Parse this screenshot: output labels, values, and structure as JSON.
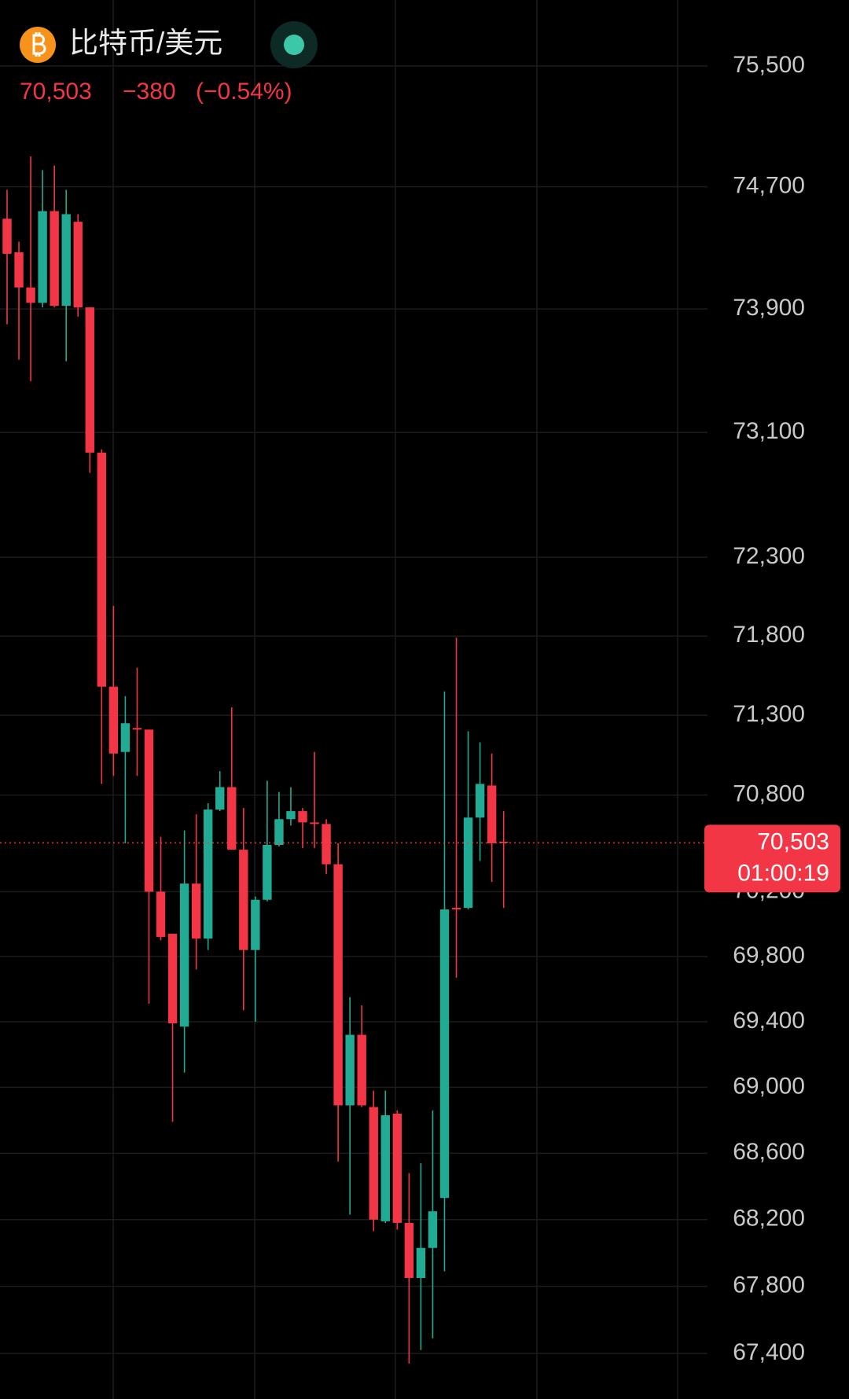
{
  "chart_data": {
    "type": "candlestick",
    "title": "比特币/美元",
    "last_price": {
      "value": 70503,
      "label": "70,503"
    },
    "change": {
      "value": -380,
      "label": "−380"
    },
    "change_percent": {
      "value": -0.54,
      "label": "(−0.54%)"
    },
    "countdown": "01:00:19",
    "up_color": "#22ab94",
    "down_color": "#f23645",
    "log_scale": true,
    "grid": true,
    "ylim": [
      67130,
      75940
    ],
    "yticks": [
      {
        "value": 75500,
        "label": "75,500"
      },
      {
        "value": 74700,
        "label": "74,700"
      },
      {
        "value": 73900,
        "label": "73,900"
      },
      {
        "value": 73100,
        "label": "73,100"
      },
      {
        "value": 72300,
        "label": "72,300"
      },
      {
        "value": 71800,
        "label": "71,800"
      },
      {
        "value": 71300,
        "label": "71,300"
      },
      {
        "value": 70800,
        "label": "70,800"
      },
      {
        "value": 70200,
        "label": "70,200"
      },
      {
        "value": 69800,
        "label": "69,800"
      },
      {
        "value": 69400,
        "label": "69,400"
      },
      {
        "value": 69000,
        "label": "69,000"
      },
      {
        "value": 68600,
        "label": "68,600"
      },
      {
        "value": 68200,
        "label": "68,200"
      },
      {
        "value": 67800,
        "label": "67,800"
      },
      {
        "value": 67400,
        "label": "67,400"
      }
    ],
    "open": [
      74490,
      74270,
      74040,
      73940,
      74540,
      73920,
      74470,
      73910,
      72970,
      71480,
      71070,
      71220,
      71210,
      70200,
      69940,
      69370,
      70250,
      69910,
      70710,
      70850,
      70460,
      69840,
      70150,
      70490,
      70650,
      70700,
      70630,
      70620,
      70370,
      68890,
      69320,
      68880,
      68190,
      68840,
      68180,
      67850,
      68030,
      68330,
      70100,
      70100,
      70660,
      70860,
      70510
    ],
    "high": [
      74680,
      74340,
      74900,
      74810,
      74840,
      74680,
      74520,
      73910,
      72990,
      71990,
      71420,
      71600,
      71210,
      70540,
      69940,
      70580,
      70680,
      70750,
      70950,
      71350,
      70720,
      70170,
      70890,
      70820,
      70850,
      70720,
      71070,
      70650,
      70500,
      69550,
      69500,
      68980,
      68980,
      68860,
      68480,
      68540,
      68860,
      71450,
      71790,
      71200,
      71130,
      71060,
      70700
    ],
    "low": [
      73800,
      73570,
      73430,
      73910,
      73910,
      73560,
      73850,
      72840,
      70870,
      70920,
      70500,
      70920,
      69510,
      69900,
      68790,
      69090,
      69720,
      69840,
      70700,
      70460,
      69470,
      69400,
      70140,
      70480,
      70610,
      70470,
      70470,
      70310,
      68550,
      68230,
      68880,
      68130,
      68180,
      68140,
      67340,
      67420,
      67490,
      67890,
      69670,
      70090,
      70390,
      70260,
      70100
    ],
    "close": [
      74260,
      74040,
      73940,
      74540,
      73920,
      74520,
      73910,
      72970,
      71480,
      71060,
      71250,
      71210,
      70200,
      69920,
      69390,
      70250,
      69910,
      70710,
      70850,
      70460,
      69840,
      70150,
      70490,
      70650,
      70700,
      70630,
      70620,
      70370,
      68890,
      69320,
      68890,
      68200,
      68830,
      68180,
      67850,
      68030,
      68250,
      70090,
      70090,
      70660,
      70870,
      70500,
      70503
    ]
  }
}
